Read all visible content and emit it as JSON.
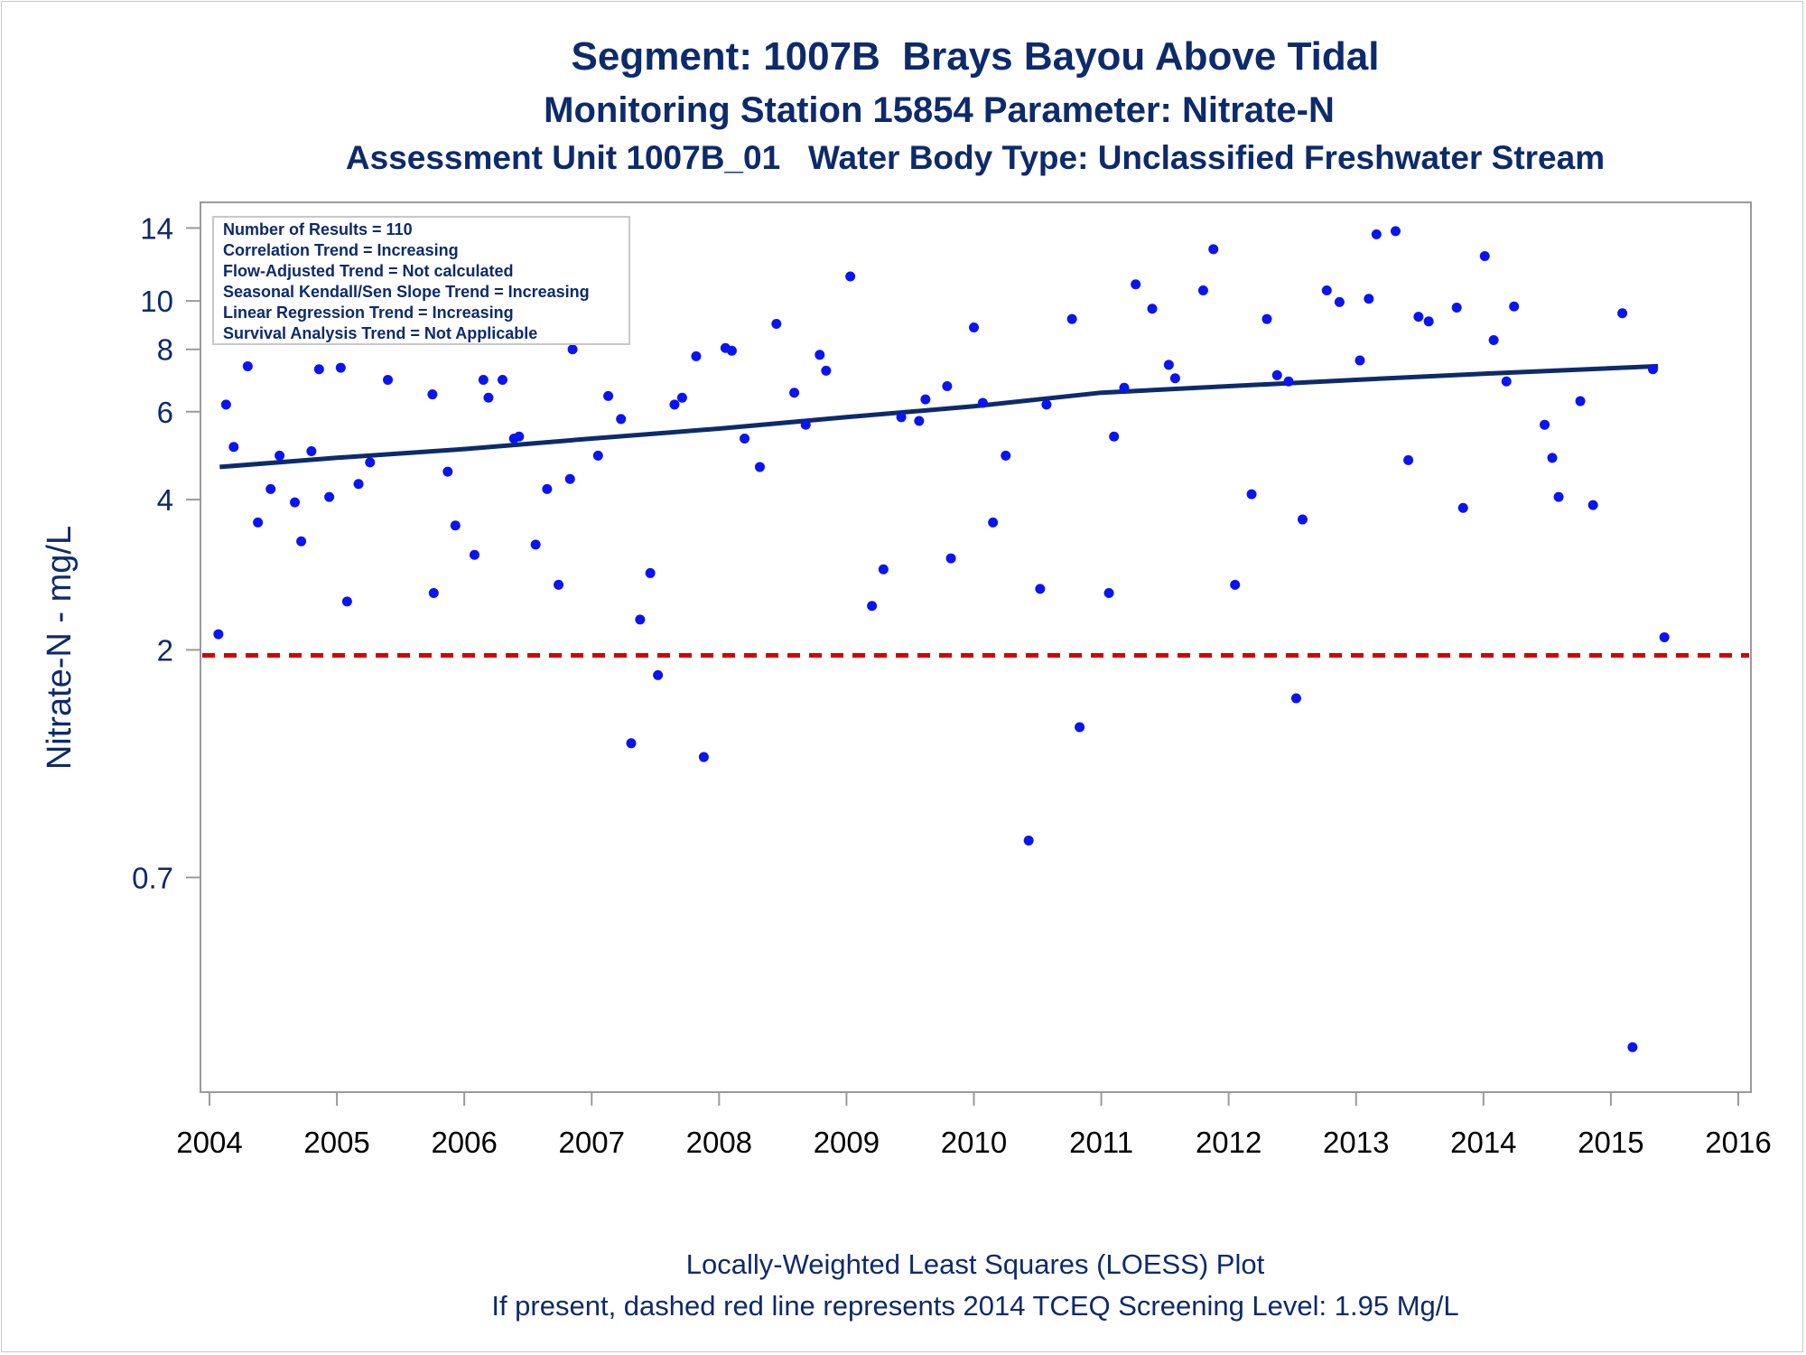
{
  "titles": {
    "line1": "Segment: 1007B  Brays Bayou Above Tidal",
    "line2": "Monitoring Station 15854 Parameter: Nitrate-N",
    "line3": "Assessment Unit 1007B_01   Water Body Type: Unclassified Freshwater Stream"
  },
  "footer": {
    "line1": "Locally-Weighted Least Squares (LOESS) Plot",
    "line2": "If present, dashed red line represents 2014 TCEQ Screening Level: 1.95 Mg/L"
  },
  "legend": [
    "Number of Results = 110",
    "Correlation Trend = Increasing",
    "Flow-Adjusted Trend = Not calculated",
    "Seasonal Kendall/Sen Slope Trend = Increasing",
    "Linear Regression Trend = Increasing",
    "Survival Analysis Trend = Not Applicable"
  ],
  "colors": {
    "points": "#0a14f0",
    "trend": "#0d2a6b",
    "screening": "#d40000",
    "text": "#0d2a6b",
    "axis": "#9a9a9a"
  },
  "chart_data": {
    "type": "scatter",
    "xlabel": "",
    "ylabel": "Nitrate-N - mg/L",
    "yscale": "log",
    "xlim": [
      2004,
      2016
    ],
    "ylim": [
      0.27,
      15.5
    ],
    "xticks": [
      2004,
      2005,
      2006,
      2007,
      2008,
      2009,
      2010,
      2011,
      2012,
      2013,
      2014,
      2015,
      2016
    ],
    "yticks": [
      0.7,
      2,
      4,
      6,
      8,
      10,
      14
    ],
    "screening_level": 1.95,
    "grid": false,
    "legend_placement": "top-left",
    "points": [
      [
        2004.07,
        2.15
      ],
      [
        2004.13,
        6.2
      ],
      [
        2004.19,
        5.1
      ],
      [
        2004.3,
        7.4
      ],
      [
        2004.38,
        3.6
      ],
      [
        2004.48,
        4.2
      ],
      [
        2004.55,
        4.9
      ],
      [
        2004.67,
        3.95
      ],
      [
        2004.72,
        3.3
      ],
      [
        2004.8,
        5.0
      ],
      [
        2004.86,
        7.3
      ],
      [
        2004.94,
        4.05
      ],
      [
        2005.03,
        7.35
      ],
      [
        2005.08,
        2.5
      ],
      [
        2005.17,
        4.3
      ],
      [
        2005.26,
        4.75
      ],
      [
        2005.4,
        6.95
      ],
      [
        2005.75,
        6.5
      ],
      [
        2005.76,
        2.6
      ],
      [
        2005.87,
        4.55
      ],
      [
        2005.93,
        3.55
      ],
      [
        2006.08,
        3.1
      ],
      [
        2006.15,
        6.95
      ],
      [
        2006.19,
        6.4
      ],
      [
        2006.3,
        6.95
      ],
      [
        2006.39,
        5.3
      ],
      [
        2006.43,
        5.35
      ],
      [
        2006.56,
        3.25
      ],
      [
        2006.65,
        4.2
      ],
      [
        2006.74,
        2.7
      ],
      [
        2006.83,
        4.4
      ],
      [
        2006.85,
        8.0
      ],
      [
        2006.93,
        12.3
      ],
      [
        2007.05,
        4.9
      ],
      [
        2007.13,
        6.45
      ],
      [
        2007.23,
        5.8
      ],
      [
        2007.31,
        1.3
      ],
      [
        2007.38,
        2.3
      ],
      [
        2007.46,
        2.85
      ],
      [
        2007.52,
        1.78
      ],
      [
        2007.65,
        6.2
      ],
      [
        2007.71,
        6.4
      ],
      [
        2007.82,
        7.75
      ],
      [
        2007.88,
        1.22
      ],
      [
        2008.05,
        8.05
      ],
      [
        2008.1,
        7.95
      ],
      [
        2008.2,
        5.3
      ],
      [
        2008.32,
        4.65
      ],
      [
        2008.45,
        9.0
      ],
      [
        2008.59,
        6.55
      ],
      [
        2008.68,
        5.65
      ],
      [
        2008.79,
        7.8
      ],
      [
        2008.84,
        7.25
      ],
      [
        2009.03,
        11.2
      ],
      [
        2009.2,
        2.45
      ],
      [
        2009.29,
        2.9
      ],
      [
        2009.43,
        5.85
      ],
      [
        2009.57,
        5.75
      ],
      [
        2009.62,
        6.35
      ],
      [
        2009.79,
        6.75
      ],
      [
        2009.82,
        3.05
      ],
      [
        2010.0,
        8.85
      ],
      [
        2010.07,
        6.25
      ],
      [
        2010.15,
        3.6
      ],
      [
        2010.25,
        4.9
      ],
      [
        2010.43,
        0.83
      ],
      [
        2010.52,
        2.65
      ],
      [
        2010.57,
        6.2
      ],
      [
        2010.77,
        9.2
      ],
      [
        2010.83,
        1.4
      ],
      [
        2011.06,
        2.6
      ],
      [
        2011.1,
        5.35
      ],
      [
        2011.18,
        6.7
      ],
      [
        2011.27,
        10.8
      ],
      [
        2011.4,
        9.65
      ],
      [
        2011.53,
        7.45
      ],
      [
        2011.58,
        7.0
      ],
      [
        2011.8,
        10.5
      ],
      [
        2011.88,
        12.7
      ],
      [
        2012.05,
        2.7
      ],
      [
        2012.18,
        4.1
      ],
      [
        2012.3,
        9.2
      ],
      [
        2012.38,
        7.1
      ],
      [
        2012.47,
        6.9
      ],
      [
        2012.53,
        1.6
      ],
      [
        2012.58,
        3.65
      ],
      [
        2012.77,
        10.5
      ],
      [
        2012.87,
        9.95
      ],
      [
        2013.03,
        7.6
      ],
      [
        2013.1,
        10.1
      ],
      [
        2013.16,
        13.6
      ],
      [
        2013.31,
        13.8
      ],
      [
        2013.41,
        4.8
      ],
      [
        2013.49,
        9.3
      ],
      [
        2013.57,
        9.1
      ],
      [
        2013.79,
        9.7
      ],
      [
        2013.84,
        3.85
      ],
      [
        2014.01,
        12.3
      ],
      [
        2014.08,
        8.35
      ],
      [
        2014.18,
        6.9
      ],
      [
        2014.24,
        9.75
      ],
      [
        2014.48,
        5.65
      ],
      [
        2014.54,
        4.85
      ],
      [
        2014.59,
        4.05
      ],
      [
        2014.76,
        6.3
      ],
      [
        2014.86,
        3.9
      ],
      [
        2015.09,
        9.45
      ],
      [
        2015.17,
        0.32
      ],
      [
        2015.33,
        7.3
      ],
      [
        2015.42,
        2.12
      ]
    ],
    "trend_line": [
      [
        2004.08,
        4.65
      ],
      [
        2005.0,
        4.85
      ],
      [
        2006.0,
        5.05
      ],
      [
        2007.0,
        5.3
      ],
      [
        2008.0,
        5.55
      ],
      [
        2009.0,
        5.85
      ],
      [
        2010.0,
        6.15
      ],
      [
        2011.0,
        6.55
      ],
      [
        2012.0,
        6.75
      ],
      [
        2013.0,
        6.95
      ],
      [
        2014.0,
        7.15
      ],
      [
        2015.37,
        7.4
      ]
    ]
  }
}
